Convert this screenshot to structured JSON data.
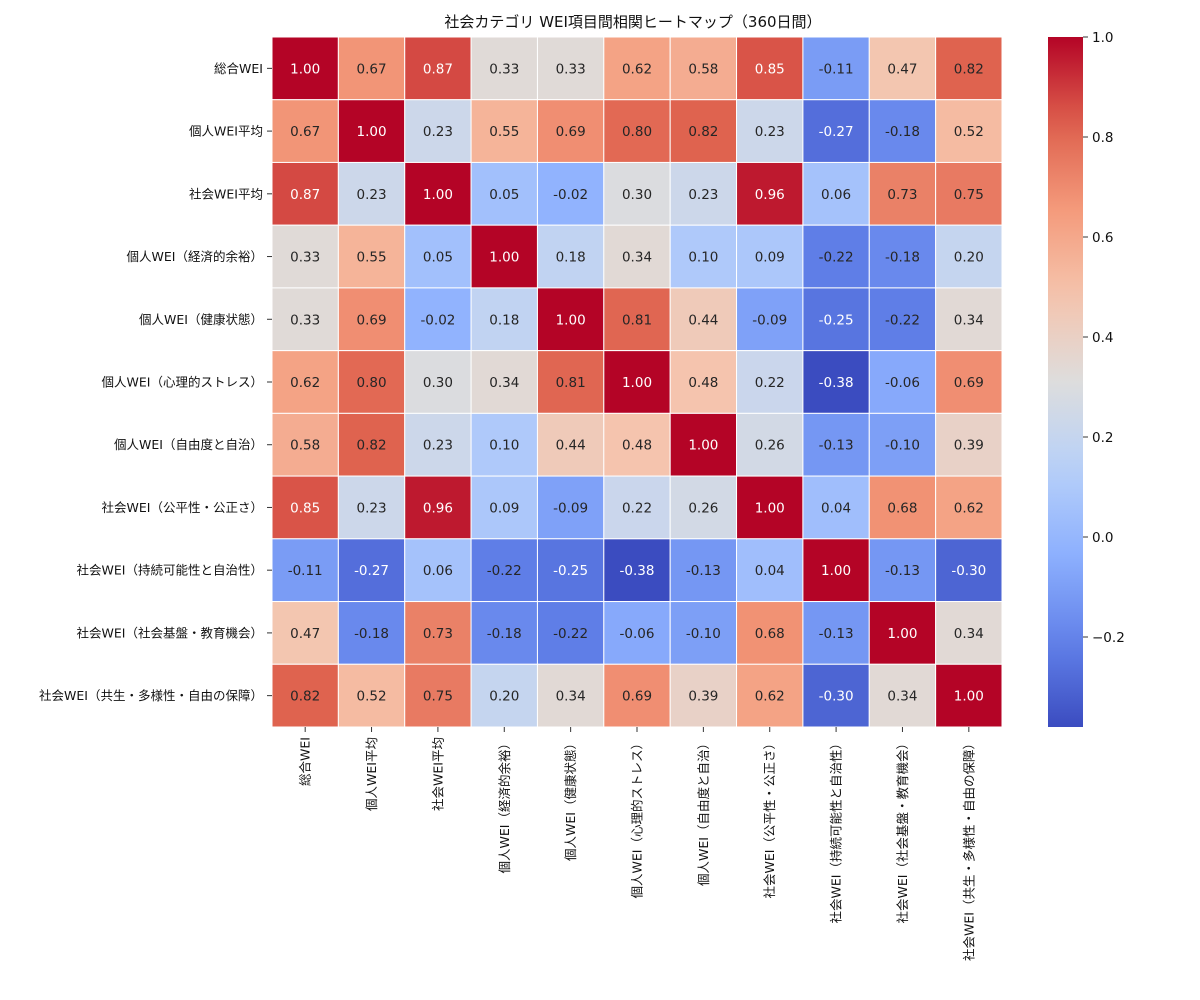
{
  "chart_data": {
    "type": "heatmap",
    "title": "社会カテゴリ WEI項目間相関ヒートマップ（360日間）",
    "xlabel": "",
    "ylabel": "",
    "labels": [
      "総合WEI",
      "個人WEI平均",
      "社会WEI平均",
      "個人WEI（経済的余裕）",
      "個人WEI（健康状態）",
      "個人WEI（心理的ストレス）",
      "個人WEI（自由度と自治）",
      "社会WEI（公平性・公正さ）",
      "社会WEI（持続可能性と自治性）",
      "社会WEI（社会基盤・教育機会）",
      "社会WEI（共生・多様性・自由の保障）"
    ],
    "matrix": [
      [
        1.0,
        0.67,
        0.87,
        0.33,
        0.33,
        0.62,
        0.58,
        0.85,
        -0.11,
        0.47,
        0.82
      ],
      [
        0.67,
        1.0,
        0.23,
        0.55,
        0.69,
        0.8,
        0.82,
        0.23,
        -0.27,
        -0.18,
        0.52
      ],
      [
        0.87,
        0.23,
        1.0,
        0.05,
        -0.02,
        0.3,
        0.23,
        0.96,
        0.06,
        0.73,
        0.75
      ],
      [
        0.33,
        0.55,
        0.05,
        1.0,
        0.18,
        0.34,
        0.1,
        0.09,
        -0.22,
        -0.18,
        0.2
      ],
      [
        0.33,
        0.69,
        -0.02,
        0.18,
        1.0,
        0.81,
        0.44,
        -0.09,
        -0.25,
        -0.22,
        0.34
      ],
      [
        0.62,
        0.8,
        0.3,
        0.34,
        0.81,
        1.0,
        0.48,
        0.22,
        -0.38,
        -0.06,
        0.69
      ],
      [
        0.58,
        0.82,
        0.23,
        0.1,
        0.44,
        0.48,
        1.0,
        0.26,
        -0.13,
        -0.1,
        0.39
      ],
      [
        0.85,
        0.23,
        0.96,
        0.09,
        -0.09,
        0.22,
        0.26,
        1.0,
        0.04,
        0.68,
        0.62
      ],
      [
        -0.11,
        -0.27,
        0.06,
        -0.22,
        -0.25,
        -0.38,
        -0.13,
        0.04,
        1.0,
        -0.13,
        -0.3
      ],
      [
        0.47,
        -0.18,
        0.73,
        -0.18,
        -0.22,
        -0.06,
        -0.1,
        0.68,
        -0.13,
        1.0,
        0.34
      ],
      [
        0.82,
        0.52,
        0.75,
        0.2,
        0.34,
        0.69,
        0.39,
        0.62,
        -0.3,
        0.34,
        1.0
      ]
    ],
    "vmin": -0.38,
    "vmax": 1.0,
    "colormap": "coolwarm",
    "colorbar_ticks": [
      {
        "value": 1.0,
        "label": "1.0"
      },
      {
        "value": 0.8,
        "label": "0.8"
      },
      {
        "value": 0.6,
        "label": "0.6"
      },
      {
        "value": 0.4,
        "label": "0.4"
      },
      {
        "value": 0.2,
        "label": "0.2"
      },
      {
        "value": 0.0,
        "label": "0.0"
      },
      {
        "value": -0.2,
        "label": "−0.2"
      }
    ]
  }
}
